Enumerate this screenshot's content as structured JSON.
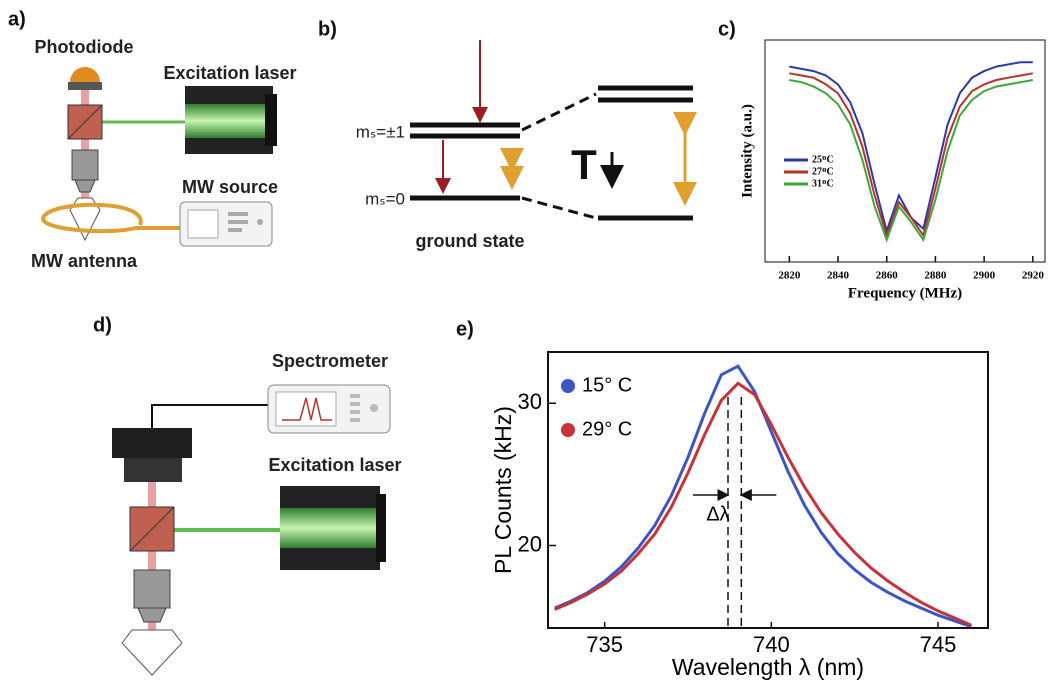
{
  "panels": {
    "a": {
      "label": "a)",
      "photodiode": "Photodiode",
      "laser": "Excitation laser",
      "mw_source": "MW source",
      "mw_antenna": "MW antenna"
    },
    "b": {
      "label": "b)",
      "upper_level": "mₛ=±1",
      "lower_level": "mₛ=0",
      "caption": "ground state",
      "temperature": "T"
    },
    "d": {
      "label": "d)",
      "spectrometer": "Spectrometer",
      "laser": "Excitation laser"
    }
  },
  "chart_data": [
    {
      "type": "line",
      "panel_label": "c)",
      "xlabel": "Frequency (MHz)",
      "ylabel": "Intensity (a.u.)",
      "x": [
        2820,
        2825,
        2830,
        2835,
        2840,
        2845,
        2850,
        2855,
        2860,
        2865,
        2870,
        2875,
        2880,
        2885,
        2890,
        2895,
        2900,
        2905,
        2910,
        2915,
        2920
      ],
      "xlim": [
        2810,
        2925
      ],
      "xticks": [
        2820,
        2840,
        2860,
        2880,
        2900,
        2920
      ],
      "ylim": [
        0,
        1
      ],
      "series": [
        {
          "name": "25ᴼC",
          "color": "#2b3aa8",
          "values": [
            0.88,
            0.87,
            0.86,
            0.84,
            0.8,
            0.72,
            0.58,
            0.35,
            0.14,
            0.3,
            0.2,
            0.15,
            0.38,
            0.62,
            0.76,
            0.83,
            0.86,
            0.88,
            0.89,
            0.9,
            0.9
          ]
        },
        {
          "name": "27ᴼC",
          "color": "#b8322c",
          "values": [
            0.85,
            0.84,
            0.83,
            0.8,
            0.76,
            0.67,
            0.52,
            0.3,
            0.12,
            0.27,
            0.2,
            0.12,
            0.33,
            0.56,
            0.7,
            0.77,
            0.8,
            0.82,
            0.83,
            0.84,
            0.85
          ]
        },
        {
          "name": "31ᴼC",
          "color": "#3da83a",
          "values": [
            0.82,
            0.81,
            0.79,
            0.76,
            0.71,
            0.62,
            0.46,
            0.25,
            0.1,
            0.25,
            0.18,
            0.1,
            0.28,
            0.5,
            0.66,
            0.73,
            0.77,
            0.79,
            0.8,
            0.81,
            0.82
          ]
        }
      ]
    },
    {
      "type": "line",
      "panel_label": "e)",
      "xlabel": "Wavelength λ (nm)",
      "ylabel": "PL Counts (kHz)",
      "annotation": "Δλ",
      "x": [
        733.5,
        734,
        734.5,
        735,
        735.5,
        736,
        736.5,
        737,
        737.5,
        738,
        738.5,
        739,
        739.5,
        740,
        740.5,
        741,
        741.5,
        742,
        742.5,
        743,
        743.5,
        744,
        744.5,
        745,
        745.5,
        746
      ],
      "xlim": [
        733.3,
        746.5
      ],
      "xticks": [
        735,
        740,
        745
      ],
      "ylim": [
        14.2,
        33.6
      ],
      "yticks": [
        20,
        30
      ],
      "vlines": [
        738.7,
        739.1
      ],
      "series": [
        {
          "name": "15° C",
          "color": "#3b56c4",
          "values": [
            15.6,
            16.1,
            16.7,
            17.5,
            18.5,
            19.8,
            21.4,
            23.5,
            26.2,
            29.3,
            32.0,
            32.6,
            30.8,
            28.0,
            25.2,
            22.8,
            20.9,
            19.4,
            18.3,
            17.4,
            16.7,
            16.1,
            15.6,
            15.1,
            14.7,
            14.3
          ]
        },
        {
          "name": "29° C",
          "color": "#c8323a",
          "values": [
            15.5,
            16.0,
            16.6,
            17.3,
            18.2,
            19.4,
            20.8,
            22.7,
            25.1,
            27.8,
            30.2,
            31.4,
            30.6,
            28.5,
            26.2,
            24.1,
            22.3,
            20.8,
            19.5,
            18.4,
            17.5,
            16.7,
            16.0,
            15.4,
            14.9,
            14.4
          ]
        }
      ]
    }
  ]
}
